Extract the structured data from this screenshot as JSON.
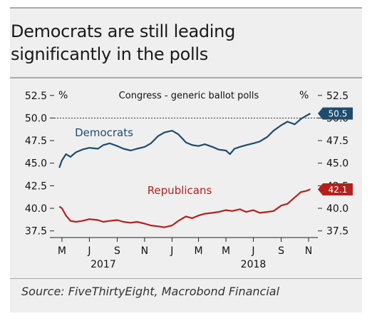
{
  "title_line1": "Democrats are still leading",
  "title_line2": "significantly in the polls",
  "source": "Source: FiveThirtyEight, Macrobond Financial",
  "chart_data": {
    "type": "line",
    "title": "Congress - generic ballot polls",
    "y_unit_left": "%",
    "y_unit_right": "%",
    "ylim": [
      37.0,
      52.8
    ],
    "yticks": [
      52.5,
      50.0,
      47.5,
      45.0,
      42.5,
      40.0,
      37.5
    ],
    "ytick_labels": [
      "52.5",
      "50.0",
      "47.5",
      "45.0",
      "42.5",
      "40.0",
      "37.5"
    ],
    "xlim": [
      "2017-04-20",
      "2018-11-20"
    ],
    "xticks": [
      {
        "date": "2017-05-01",
        "label": "M"
      },
      {
        "date": "2017-07-01",
        "label": "J"
      },
      {
        "date": "2017-09-01",
        "label": "S"
      },
      {
        "date": "2017-11-01",
        "label": "N"
      },
      {
        "date": "2018-01-01",
        "label": "J"
      },
      {
        "date": "2018-03-01",
        "label": "M"
      },
      {
        "date": "2018-05-01",
        "label": "M"
      },
      {
        "date": "2018-07-01",
        "label": "J"
      },
      {
        "date": "2018-09-01",
        "label": "S"
      },
      {
        "date": "2018-11-01",
        "label": "N"
      }
    ],
    "year_labels": [
      {
        "date": "2017-08-01",
        "label": "2017"
      },
      {
        "date": "2018-07-01",
        "label": "2018"
      }
    ],
    "reference_line": 50.0,
    "grid": false,
    "series": [
      {
        "name": "Democrats",
        "color": "#1e4b6e",
        "end_label": "50.5",
        "points": [
          [
            "2017-04-25",
            44.5
          ],
          [
            "2017-05-01",
            45.3
          ],
          [
            "2017-05-10",
            46.0
          ],
          [
            "2017-05-20",
            45.7
          ],
          [
            "2017-06-01",
            46.2
          ],
          [
            "2017-06-15",
            46.5
          ],
          [
            "2017-07-01",
            46.7
          ],
          [
            "2017-07-20",
            46.6
          ],
          [
            "2017-08-01",
            47.0
          ],
          [
            "2017-08-15",
            47.2
          ],
          [
            "2017-09-01",
            46.9
          ],
          [
            "2017-09-15",
            46.6
          ],
          [
            "2017-10-01",
            46.4
          ],
          [
            "2017-10-15",
            46.6
          ],
          [
            "2017-11-01",
            46.8
          ],
          [
            "2017-11-15",
            47.2
          ],
          [
            "2017-12-01",
            48.0
          ],
          [
            "2017-12-15",
            48.4
          ],
          [
            "2018-01-01",
            48.6
          ],
          [
            "2018-01-15",
            48.2
          ],
          [
            "2018-02-01",
            47.3
          ],
          [
            "2018-02-15",
            47.0
          ],
          [
            "2018-03-01",
            46.9
          ],
          [
            "2018-03-15",
            47.1
          ],
          [
            "2018-04-01",
            46.8
          ],
          [
            "2018-04-15",
            46.5
          ],
          [
            "2018-05-01",
            46.4
          ],
          [
            "2018-05-10",
            46.0
          ],
          [
            "2018-05-20",
            46.6
          ],
          [
            "2018-06-01",
            46.8
          ],
          [
            "2018-06-15",
            47.0
          ],
          [
            "2018-07-01",
            47.2
          ],
          [
            "2018-07-15",
            47.4
          ],
          [
            "2018-08-01",
            47.9
          ],
          [
            "2018-08-15",
            48.6
          ],
          [
            "2018-09-01",
            49.2
          ],
          [
            "2018-09-15",
            49.6
          ],
          [
            "2018-10-01",
            49.3
          ],
          [
            "2018-10-15",
            49.9
          ],
          [
            "2018-10-25",
            50.2
          ],
          [
            "2018-11-05",
            50.5
          ]
        ]
      },
      {
        "name": "Republicans",
        "color": "#b3211d",
        "end_label": "42.1",
        "points": [
          [
            "2017-04-25",
            40.2
          ],
          [
            "2017-05-01",
            40.0
          ],
          [
            "2017-05-10",
            39.2
          ],
          [
            "2017-05-20",
            38.6
          ],
          [
            "2017-06-01",
            38.5
          ],
          [
            "2017-06-15",
            38.6
          ],
          [
            "2017-07-01",
            38.8
          ],
          [
            "2017-07-20",
            38.7
          ],
          [
            "2017-08-01",
            38.5
          ],
          [
            "2017-08-15",
            38.6
          ],
          [
            "2017-09-01",
            38.7
          ],
          [
            "2017-09-15",
            38.5
          ],
          [
            "2017-10-01",
            38.4
          ],
          [
            "2017-10-15",
            38.5
          ],
          [
            "2017-11-01",
            38.3
          ],
          [
            "2017-11-15",
            38.1
          ],
          [
            "2017-12-01",
            38.0
          ],
          [
            "2017-12-15",
            37.9
          ],
          [
            "2018-01-01",
            38.1
          ],
          [
            "2018-01-15",
            38.6
          ],
          [
            "2018-02-01",
            39.1
          ],
          [
            "2018-02-15",
            38.9
          ],
          [
            "2018-03-01",
            39.2
          ],
          [
            "2018-03-15",
            39.4
          ],
          [
            "2018-04-01",
            39.5
          ],
          [
            "2018-04-15",
            39.6
          ],
          [
            "2018-05-01",
            39.8
          ],
          [
            "2018-05-15",
            39.7
          ],
          [
            "2018-06-01",
            39.9
          ],
          [
            "2018-06-15",
            39.6
          ],
          [
            "2018-07-01",
            39.8
          ],
          [
            "2018-07-15",
            39.5
          ],
          [
            "2018-08-01",
            39.6
          ],
          [
            "2018-08-15",
            39.7
          ],
          [
            "2018-09-01",
            40.3
          ],
          [
            "2018-09-15",
            40.5
          ],
          [
            "2018-10-01",
            41.2
          ],
          [
            "2018-10-15",
            41.8
          ],
          [
            "2018-10-25",
            41.9
          ],
          [
            "2018-11-05",
            42.1
          ]
        ]
      }
    ]
  }
}
